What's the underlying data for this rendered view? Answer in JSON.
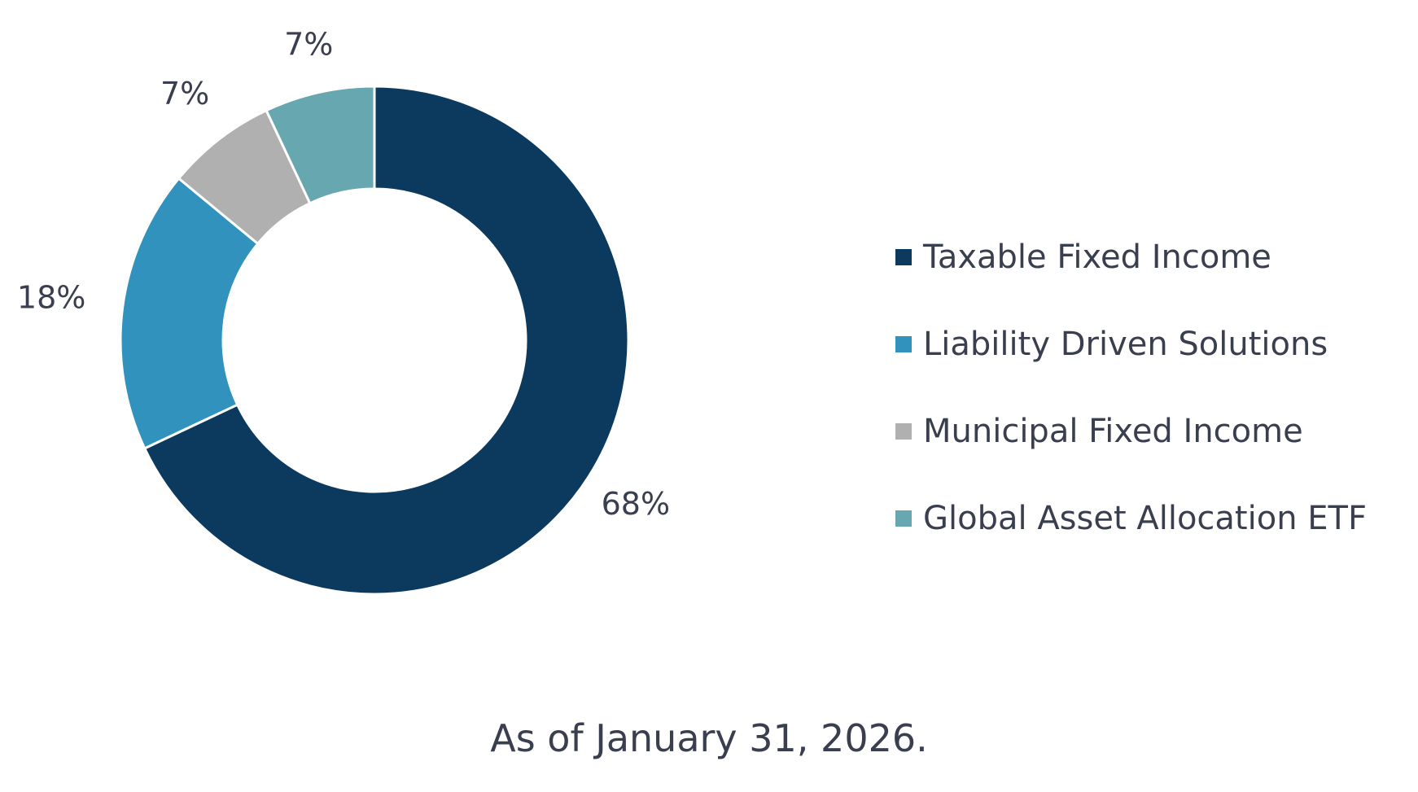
{
  "chart_data": {
    "type": "pie",
    "style": "donut",
    "categories": [
      "Taxable Fixed Income",
      "Liability Driven Solutions",
      "Municipal Fixed Income",
      "Global Asset Allocation ETF"
    ],
    "values": [
      68,
      18,
      7,
      7
    ],
    "value_labels": [
      "68%",
      "18%",
      "7%",
      "7%"
    ],
    "colors": [
      "#0c3a5e",
      "#3193bd",
      "#b0b0b0",
      "#66a7b0"
    ],
    "legend_position": "right"
  },
  "legend": {
    "items": [
      {
        "label": "Taxable Fixed Income",
        "color": "#0c3a5e"
      },
      {
        "label": "Liability Driven Solutions",
        "color": "#3193bd"
      },
      {
        "label": "Municipal Fixed Income",
        "color": "#b0b0b0"
      },
      {
        "label": "Global Asset Allocation ETF",
        "color": "#66a7b0"
      }
    ]
  },
  "footnote": "As of January 31, 2026."
}
